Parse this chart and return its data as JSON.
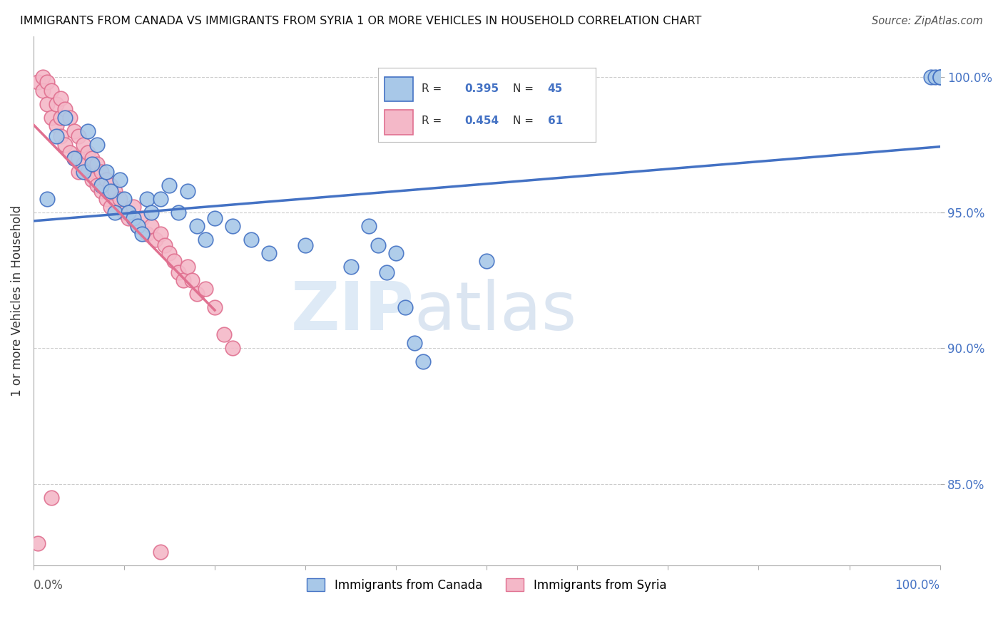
{
  "title": "IMMIGRANTS FROM CANADA VS IMMIGRANTS FROM SYRIA 1 OR MORE VEHICLES IN HOUSEHOLD CORRELATION CHART",
  "source": "Source: ZipAtlas.com",
  "ylabel": "1 or more Vehicles in Household",
  "xlim": [
    0,
    100
  ],
  "ylim": [
    82,
    101.5
  ],
  "yticks": [
    85,
    90,
    95,
    100
  ],
  "ytick_labels": [
    "85.0%",
    "90.0%",
    "95.0%",
    "100.0%"
  ],
  "canada_color": "#a8c8e8",
  "canada_edge_color": "#4472c4",
  "syria_color": "#f4b8c8",
  "syria_edge_color": "#e07090",
  "canada_R": 0.395,
  "canada_N": 45,
  "syria_R": 0.454,
  "syria_N": 61,
  "legend_label_canada": "Immigrants from Canada",
  "legend_label_syria": "Immigrants from Syria",
  "canada_x": [
    1.5,
    2.5,
    3.5,
    4.5,
    5.5,
    6.0,
    6.5,
    7.0,
    7.5,
    8.0,
    8.5,
    9.0,
    9.5,
    10.0,
    10.5,
    11.0,
    11.5,
    12.0,
    12.5,
    13.0,
    14.0,
    15.0,
    16.0,
    17.0,
    18.0,
    19.0,
    20.0,
    22.0,
    24.0,
    26.0,
    30.0,
    35.0,
    37.0,
    38.0,
    39.0,
    40.0,
    41.0,
    42.0,
    43.0,
    50.0,
    99.0,
    99.5,
    100.0,
    100.0,
    100.0
  ],
  "canada_y": [
    95.5,
    97.8,
    98.5,
    97.0,
    96.5,
    98.0,
    96.8,
    97.5,
    96.0,
    96.5,
    95.8,
    95.0,
    96.2,
    95.5,
    95.0,
    94.8,
    94.5,
    94.2,
    95.5,
    95.0,
    95.5,
    96.0,
    95.0,
    95.8,
    94.5,
    94.0,
    94.8,
    94.5,
    94.0,
    93.5,
    93.8,
    93.0,
    94.5,
    93.8,
    92.8,
    93.5,
    91.5,
    90.2,
    89.5,
    93.2,
    100.0,
    100.0,
    100.0,
    100.0,
    100.0
  ],
  "syria_x": [
    0.5,
    1.0,
    1.0,
    1.5,
    1.5,
    2.0,
    2.0,
    2.5,
    2.5,
    3.0,
    3.0,
    3.0,
    3.5,
    3.5,
    4.0,
    4.0,
    4.5,
    4.5,
    5.0,
    5.0,
    5.0,
    5.5,
    5.5,
    6.0,
    6.0,
    6.5,
    6.5,
    7.0,
    7.0,
    7.5,
    7.5,
    8.0,
    8.0,
    8.5,
    8.5,
    9.0,
    9.5,
    10.0,
    10.5,
    11.0,
    11.5,
    12.0,
    12.5,
    13.0,
    13.5,
    14.0,
    14.5,
    15.0,
    15.5,
    16.0,
    16.5,
    17.0,
    17.5,
    18.0,
    19.0,
    20.0,
    21.0,
    22.0,
    2.0,
    14.0,
    0.5
  ],
  "syria_y": [
    99.8,
    100.0,
    99.5,
    99.8,
    99.0,
    99.5,
    98.5,
    99.0,
    98.2,
    99.2,
    98.5,
    97.8,
    98.8,
    97.5,
    98.5,
    97.2,
    98.0,
    97.0,
    97.8,
    97.0,
    96.5,
    97.5,
    96.8,
    97.2,
    96.5,
    97.0,
    96.2,
    96.8,
    96.0,
    96.5,
    95.8,
    96.2,
    95.5,
    96.0,
    95.2,
    95.8,
    95.5,
    95.0,
    94.8,
    95.2,
    94.5,
    94.8,
    94.2,
    94.5,
    94.0,
    94.2,
    93.8,
    93.5,
    93.2,
    92.8,
    92.5,
    93.0,
    92.5,
    92.0,
    92.2,
    91.5,
    90.5,
    90.0,
    84.5,
    82.5,
    82.8
  ],
  "watermark_zip": "ZIP",
  "watermark_atlas": "atlas",
  "background_color": "#ffffff",
  "grid_color": "#cccccc",
  "line_color_canada": "#4472c4",
  "line_color_syria": "#e07090"
}
